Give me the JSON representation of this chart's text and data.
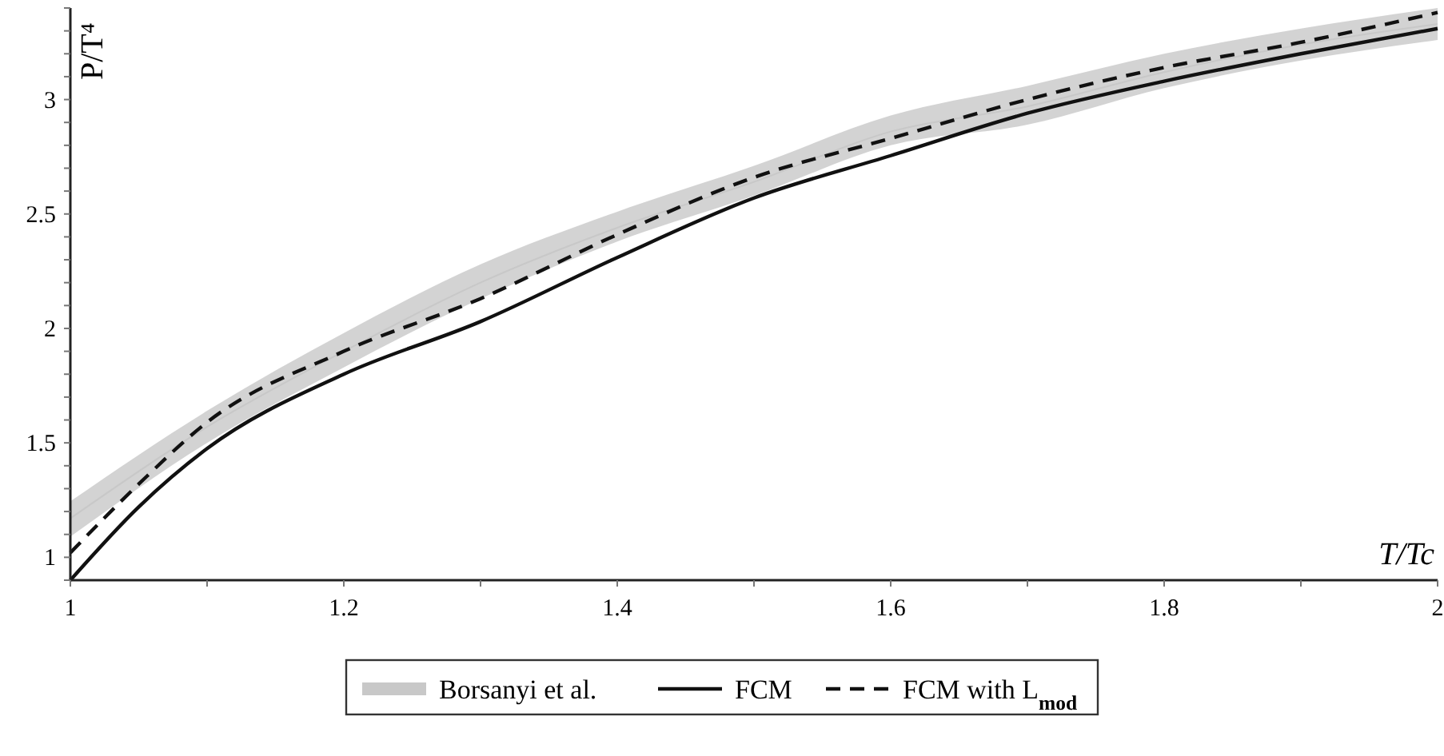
{
  "chart_data": {
    "type": "line",
    "xlabel": "T/Tc",
    "ylabel": "P/T⁴",
    "xlim": [
      1,
      2
    ],
    "ylim": [
      0.9,
      3.4
    ],
    "xticks": [
      1,
      {
        "value": 1.1,
        "label": null
      },
      1.2,
      {
        "value": 1.3,
        "label": null
      },
      1.4,
      {
        "value": 1.5,
        "label": null
      },
      1.6,
      {
        "value": 1.7,
        "label": null
      },
      1.8,
      {
        "value": 1.9,
        "label": null
      },
      2
    ],
    "yticks": [
      {
        "value": 0.9,
        "label": null
      },
      1,
      {
        "value": 1.1,
        "label": null
      },
      {
        "value": 1.2,
        "label": null
      },
      {
        "value": 1.3,
        "label": null
      },
      {
        "value": 1.4,
        "label": null
      },
      1.5,
      {
        "value": 1.6,
        "label": null
      },
      {
        "value": 1.7,
        "label": null
      },
      {
        "value": 1.8,
        "label": null
      },
      {
        "value": 1.9,
        "label": null
      },
      2,
      {
        "value": 2.1,
        "label": null
      },
      {
        "value": 2.2,
        "label": null
      },
      {
        "value": 2.3,
        "label": null
      },
      {
        "value": 2.4,
        "label": null
      },
      2.5,
      {
        "value": 2.6,
        "label": null
      },
      {
        "value": 2.7,
        "label": null
      },
      {
        "value": 2.8,
        "label": null
      },
      {
        "value": 2.9,
        "label": null
      },
      3,
      {
        "value": 3.1,
        "label": null
      },
      {
        "value": 3.2,
        "label": null
      },
      {
        "value": 3.3,
        "label": null
      },
      {
        "value": 3.4,
        "label": null
      }
    ],
    "x": [
      1,
      1.05,
      1.1,
      1.2,
      1.3,
      1.4,
      1.5,
      1.6,
      1.7,
      1.8,
      1.9,
      2
    ],
    "legend": "bottom",
    "grid": false,
    "series": [
      {
        "name": "Borsanyi et al.",
        "type": "line",
        "color": "#c8c8c8",
        "x": [
          1,
          1.1,
          1.2,
          1.3,
          1.4,
          1.5,
          1.6,
          1.7,
          1.8,
          1.9,
          2
        ],
        "values": [
          1.17,
          1.57,
          1.9,
          2.2,
          2.44,
          2.64,
          2.86,
          2.97,
          3.12,
          3.24,
          3.33
        ],
        "lower": [
          1.09,
          1.5,
          1.83,
          2.13,
          2.38,
          2.58,
          2.8,
          2.89,
          3.05,
          3.17,
          3.26
        ],
        "upper": [
          1.245,
          1.64,
          1.98,
          2.28,
          2.51,
          2.71,
          2.93,
          3.06,
          3.2,
          3.31,
          3.4
        ]
      },
      {
        "name": "FCM",
        "color": "#111111",
        "line_style": "solid",
        "values": [
          0.9,
          1.22,
          1.475,
          1.8,
          2.03,
          2.31,
          2.57,
          2.755,
          2.94,
          3.08,
          3.2,
          3.31
        ]
      },
      {
        "name": "FCM with L$_{mod}$",
        "color": "#111111",
        "line_style": "dashed",
        "values": [
          1.02,
          1.32,
          1.59,
          1.9,
          2.13,
          2.41,
          2.66,
          2.83,
          3.0,
          3.14,
          3.25,
          3.38
        ]
      }
    ]
  }
}
